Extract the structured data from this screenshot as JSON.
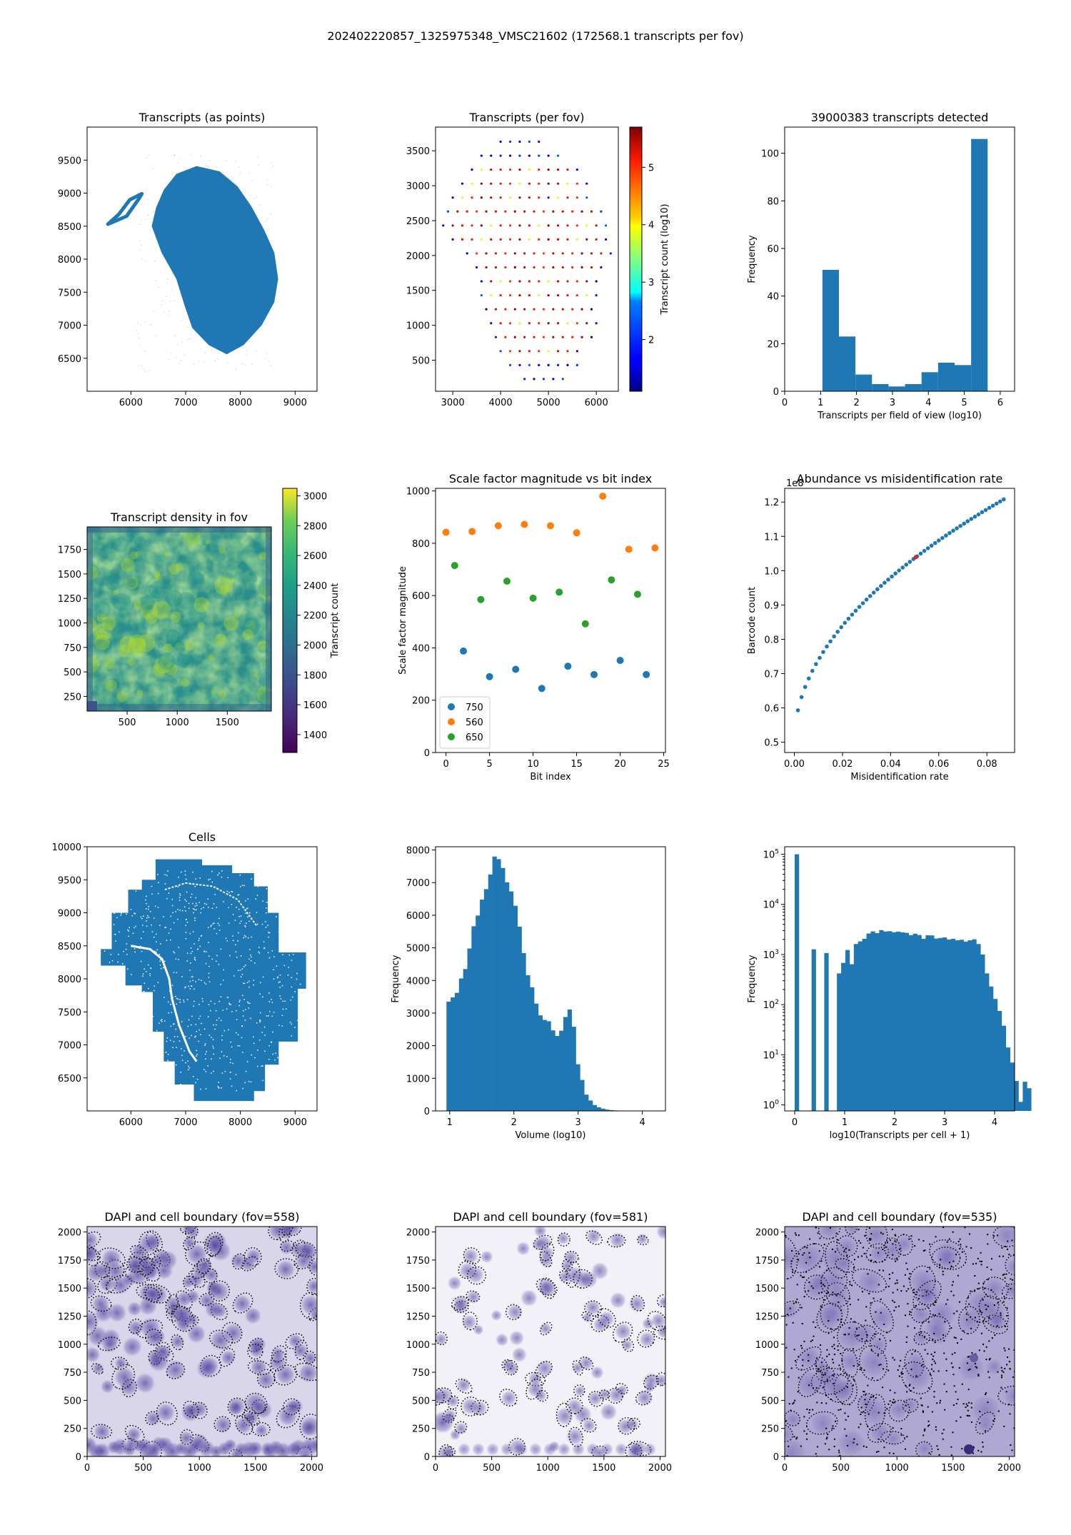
{
  "suptitle": "202402220857_1325975348_VMSC21602 (172568.1 transcripts per fov)",
  "colors": {
    "blue": "#1f77b4",
    "orange": "#ff7f0e",
    "green": "#2ca02c",
    "red": "#d62728",
    "purple": "#5a4b9c"
  },
  "chart_data": [
    {
      "id": "p1",
      "type": "scatter",
      "title": "Transcripts (as points)",
      "xlabel": "",
      "ylabel": "",
      "xlim": [
        5200,
        9400
      ],
      "ylim": [
        6000,
        10000
      ],
      "xticks": [
        6000,
        7000,
        8000,
        9000
      ],
      "yticks": [
        6500,
        7000,
        7500,
        8000,
        8500,
        9000,
        9500
      ],
      "outline": [
        [
          6830,
          9290
        ],
        [
          7200,
          9410
        ],
        [
          7620,
          9330
        ],
        [
          7950,
          9100
        ],
        [
          8200,
          8800
        ],
        [
          8430,
          8450
        ],
        [
          8620,
          8100
        ],
        [
          8690,
          7700
        ],
        [
          8620,
          7350
        ],
        [
          8390,
          7000
        ],
        [
          8060,
          6700
        ],
        [
          7750,
          6560
        ],
        [
          7420,
          6700
        ],
        [
          7120,
          6960
        ],
        [
          6980,
          7300
        ],
        [
          6830,
          7700
        ],
        [
          6560,
          8100
        ],
        [
          6380,
          8500
        ],
        [
          6460,
          8780
        ],
        [
          6600,
          9050
        ]
      ],
      "appendage": [
        [
          5580,
          8530
        ],
        [
          5920,
          8650
        ],
        [
          6150,
          8920
        ],
        [
          6200,
          8990
        ],
        [
          5980,
          8900
        ],
        [
          5780,
          8680
        ]
      ]
    },
    {
      "id": "p2",
      "type": "scatter",
      "title": "Transcripts (per fov)",
      "xlabel": "",
      "ylabel": "",
      "colorbar_label": "Transcript count (log10)",
      "xlim": [
        2640,
        6460
      ],
      "ylim": [
        55,
        3840
      ],
      "xticks": [
        3000,
        4000,
        5000,
        6000
      ],
      "yticks": [
        500,
        1000,
        1500,
        2000,
        2500,
        3000,
        3500
      ],
      "colorbar_range": [
        1.1,
        5.7
      ],
      "colorbar_ticks": [
        2,
        3,
        4,
        5
      ],
      "grid_spacing": [
        200,
        200
      ],
      "rows": [
        {
          "y": 3630,
          "x0": 4000,
          "x1": 4900
        },
        {
          "y": 3430,
          "x0": 3600,
          "x1": 5300
        },
        {
          "y": 3230,
          "x0": 3400,
          "x1": 5600
        },
        {
          "y": 3030,
          "x0": 3200,
          "x1": 5800
        },
        {
          "y": 2830,
          "x0": 3000,
          "x1": 5900
        },
        {
          "y": 2630,
          "x0": 2900,
          "x1": 6100
        },
        {
          "y": 2430,
          "x0": 2800,
          "x1": 6200
        },
        {
          "y": 2230,
          "x0": 3000,
          "x1": 6300
        },
        {
          "y": 2030,
          "x0": 3300,
          "x1": 6300
        },
        {
          "y": 1830,
          "x0": 3500,
          "x1": 6100
        },
        {
          "y": 1630,
          "x0": 3600,
          "x1": 6000
        },
        {
          "y": 1430,
          "x0": 3600,
          "x1": 6000
        },
        {
          "y": 1230,
          "x0": 3700,
          "x1": 6000
        },
        {
          "y": 1030,
          "x0": 3800,
          "x1": 6000
        },
        {
          "y": 830,
          "x0": 3900,
          "x1": 5900
        },
        {
          "y": 630,
          "x0": 4000,
          "x1": 5700
        },
        {
          "y": 430,
          "x0": 4200,
          "x1": 5600
        },
        {
          "y": 230,
          "x0": 4500,
          "x1": 5300
        }
      ]
    },
    {
      "id": "p3",
      "type": "bar",
      "title": "39000383 transcripts detected",
      "xlabel": "Transcripts per field of view (log10)",
      "ylabel": "Frequency",
      "xlim": [
        0,
        6.4
      ],
      "ylim": [
        0,
        111
      ],
      "xticks": [
        0,
        1,
        2,
        3,
        4,
        5,
        6
      ],
      "yticks": [
        0,
        20,
        40,
        60,
        80,
        100
      ],
      "bin_edges": [
        1.05,
        1.51,
        1.97,
        2.43,
        2.89,
        3.35,
        3.81,
        4.27,
        4.73,
        5.19,
        5.65
      ],
      "values": [
        51,
        23,
        7,
        3,
        2,
        3,
        8,
        12,
        11,
        106
      ]
    },
    {
      "id": "p4",
      "type": "heatmap",
      "title": "Transcript density in fov",
      "xlabel": "",
      "ylabel": "",
      "colorbar_label": "Transcript count",
      "xlim": [
        100,
        1940
      ],
      "ylim": [
        100,
        1980
      ],
      "xticks": [
        500,
        1000,
        1500
      ],
      "yticks": [
        250,
        500,
        750,
        1000,
        1250,
        1500,
        1750
      ],
      "colorbar_range": [
        1280,
        3050
      ],
      "colorbar_ticks": [
        1400,
        1600,
        1800,
        2000,
        2200,
        2400,
        2600,
        2800,
        3000
      ]
    },
    {
      "id": "p5",
      "type": "scatter",
      "title": "Scale factor magnitude vs bit index",
      "xlabel": "Bit index",
      "ylabel": "Scale factor magnitude",
      "xlim": [
        -1.2,
        25.2
      ],
      "ylim": [
        0,
        1010
      ],
      "xticks": [
        0,
        5,
        10,
        15,
        20,
        25
      ],
      "yticks": [
        0,
        200,
        400,
        600,
        800,
        1000
      ],
      "legend_position": "lower left",
      "series": [
        {
          "name": "750",
          "x": [
            2,
            5,
            8,
            11,
            14,
            17,
            20,
            23
          ],
          "y": [
            388,
            290,
            318,
            245,
            330,
            298,
            352,
            298
          ]
        },
        {
          "name": "560",
          "x": [
            0,
            3,
            6,
            9,
            12,
            15,
            18,
            21,
            24
          ],
          "y": [
            842,
            845,
            867,
            872,
            867,
            840,
            980,
            777,
            782
          ]
        },
        {
          "name": "650",
          "x": [
            1,
            4,
            7,
            10,
            13,
            16,
            19,
            22
          ],
          "y": [
            715,
            585,
            655,
            590,
            613,
            492,
            660,
            605
          ]
        }
      ]
    },
    {
      "id": "p6",
      "type": "scatter",
      "title": "Abundance vs misidentification rate",
      "xlabel": "Misidentification rate",
      "ylabel": "Barcode count",
      "offset_text": "1e8",
      "xlim": [
        -0.004,
        0.0915
      ],
      "ylim": [
        0.47,
        1.24
      ],
      "xticks": [
        0.0,
        0.02,
        0.04,
        0.06,
        0.08
      ],
      "yticks": [
        0.5,
        0.6,
        0.7,
        0.8,
        0.9,
        1.0,
        1.1,
        1.2
      ],
      "x": [
        0.0015,
        0.003,
        0.0045,
        0.006,
        0.0075,
        0.009,
        0.0105,
        0.012,
        0.0135,
        0.015,
        0.0165,
        0.018,
        0.0195,
        0.021,
        0.0225,
        0.024,
        0.0255,
        0.027,
        0.0285,
        0.03,
        0.0315,
        0.033,
        0.0345,
        0.036,
        0.0375,
        0.039,
        0.0405,
        0.042,
        0.0435,
        0.045,
        0.0465,
        0.048,
        0.0495,
        0.051,
        0.0525,
        0.054,
        0.0555,
        0.057,
        0.0585,
        0.06,
        0.0615,
        0.063,
        0.0645,
        0.066,
        0.0675,
        0.069,
        0.0705,
        0.072,
        0.0735,
        0.075,
        0.0765,
        0.078,
        0.0795,
        0.081,
        0.0825,
        0.084,
        0.0855,
        0.087
      ],
      "highlight_x": 0.0505
    },
    {
      "id": "p7",
      "type": "scatter",
      "title": "Cells",
      "xlabel": "",
      "ylabel": "",
      "xlim": [
        5200,
        9400
      ],
      "ylim": [
        6000,
        10000
      ],
      "xticks": [
        6000,
        7000,
        8000,
        9000
      ],
      "yticks": [
        6500,
        7000,
        7500,
        8000,
        8500,
        9000,
        9500,
        10000
      ],
      "outline": [
        [
          6450,
          9810
        ],
        [
          7300,
          9810
        ],
        [
          7300,
          9720
        ],
        [
          7850,
          9720
        ],
        [
          7850,
          9600
        ],
        [
          8250,
          9600
        ],
        [
          8250,
          9400
        ],
        [
          8500,
          9400
        ],
        [
          8500,
          9000
        ],
        [
          8700,
          9000
        ],
        [
          8700,
          8400
        ],
        [
          9200,
          8400
        ],
        [
          9200,
          7850
        ],
        [
          9050,
          7850
        ],
        [
          9050,
          7050
        ],
        [
          8700,
          7050
        ],
        [
          8700,
          6700
        ],
        [
          8450,
          6700
        ],
        [
          8450,
          6300
        ],
        [
          8250,
          6300
        ],
        [
          8250,
          6150
        ],
        [
          7150,
          6150
        ],
        [
          7150,
          6400
        ],
        [
          6800,
          6400
        ],
        [
          6800,
          6750
        ],
        [
          6600,
          6750
        ],
        [
          6600,
          7200
        ],
        [
          6400,
          7200
        ],
        [
          6400,
          7800
        ],
        [
          6200,
          7800
        ],
        [
          6200,
          7900
        ],
        [
          5900,
          7900
        ],
        [
          5900,
          8200
        ],
        [
          5450,
          8200
        ],
        [
          5450,
          8450
        ],
        [
          5650,
          8450
        ],
        [
          5650,
          9000
        ],
        [
          5950,
          9000
        ],
        [
          5950,
          9350
        ],
        [
          6200,
          9350
        ],
        [
          6200,
          9500
        ],
        [
          6450,
          9500
        ]
      ]
    },
    {
      "id": "p8",
      "type": "bar",
      "title": "",
      "xlabel": "Volume (log10)",
      "ylabel": "Frequency",
      "xlim": [
        0.78,
        4.36
      ],
      "ylim": [
        0,
        8100
      ],
      "xticks": [
        1,
        2,
        3,
        4
      ],
      "yticks": [
        0,
        1000,
        2000,
        3000,
        4000,
        5000,
        6000,
        7000,
        8000
      ],
      "bin_start": 0.95,
      "bin_width": 0.065,
      "values": [
        3350,
        3480,
        3620,
        4060,
        4350,
        4980,
        5660,
        5990,
        6480,
        6800,
        7250,
        7800,
        7720,
        7450,
        7010,
        6730,
        6290,
        5650,
        4840,
        4160,
        3790,
        3290,
        2930,
        2790,
        2750,
        2470,
        2300,
        2460,
        2880,
        3110,
        2580,
        1430,
        950,
        500,
        320,
        180,
        110,
        70,
        40,
        25,
        15,
        10,
        8,
        5
      ]
    },
    {
      "id": "p9",
      "type": "bar",
      "title": "",
      "yscale": "log",
      "xlabel": "log10(Transcripts per cell + 1)",
      "ylabel": "Frequency",
      "xlim": [
        -0.2,
        4.4
      ],
      "ylim_log10": [
        -0.12,
        5.15
      ],
      "xticks": [
        0,
        1,
        2,
        3,
        4
      ],
      "ytick_exponents": [
        0,
        1,
        2,
        3,
        4,
        5
      ],
      "bin_start": 0.0,
      "bin_width": 0.0845,
      "values": [
        100000,
        0,
        0,
        0,
        1270,
        0,
        0,
        1070,
        0,
        0,
        420,
        680,
        1230,
        640,
        1620,
        1830,
        2060,
        2620,
        2890,
        2670,
        3070,
        2880,
        2920,
        2780,
        2860,
        2770,
        2700,
        2430,
        2600,
        2450,
        2060,
        2420,
        2400,
        2080,
        2140,
        2190,
        1990,
        2060,
        1920,
        1970,
        1810,
        1920,
        2010,
        1620,
        1000,
        420,
        230,
        130,
        75,
        38,
        14,
        7,
        3,
        1.15,
        2.9,
        2.15
      ]
    },
    {
      "id": "p10",
      "type": "image",
      "title": "DAPI and cell boundary (fov=558)",
      "xlim": [
        0,
        2048
      ],
      "ylim": [
        0,
        2048
      ],
      "xticks": [
        0,
        500,
        1000,
        1500,
        2000
      ],
      "yticks": [
        0,
        250,
        500,
        750,
        1000,
        1250,
        1500,
        1750,
        2000
      ]
    },
    {
      "id": "p11",
      "type": "image",
      "title": "DAPI and cell boundary (fov=581)",
      "xlim": [
        0,
        2048
      ],
      "ylim": [
        0,
        2048
      ],
      "xticks": [
        0,
        500,
        1000,
        1500,
        2000
      ],
      "yticks": [
        0,
        250,
        500,
        750,
        1000,
        1250,
        1500,
        1750,
        2000
      ]
    },
    {
      "id": "p12",
      "type": "image",
      "title": "DAPI and cell boundary (fov=535)",
      "xlim": [
        0,
        2048
      ],
      "ylim": [
        0,
        2048
      ],
      "xticks": [
        0,
        500,
        1000,
        1500,
        2000
      ],
      "yticks": [
        0,
        250,
        500,
        750,
        1000,
        1250,
        1500,
        1750,
        2000
      ]
    }
  ]
}
